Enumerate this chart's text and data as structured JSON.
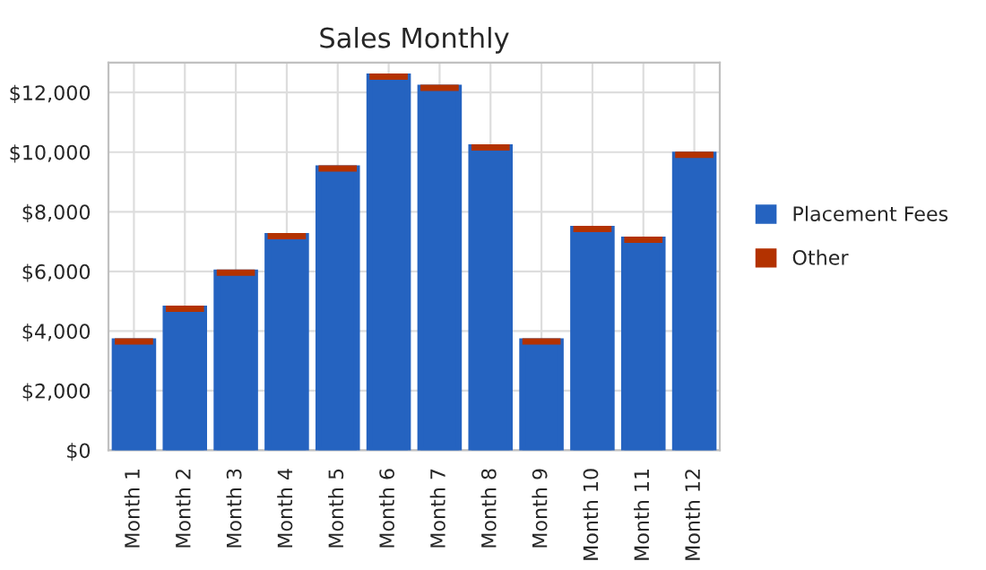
{
  "chart_data": {
    "type": "bar",
    "title": "Sales Monthly",
    "stacked": true,
    "categories": [
      "Month 1",
      "Month 2",
      "Month 3",
      "Month 4",
      "Month 5",
      "Month 6",
      "Month 7",
      "Month 8",
      "Month 9",
      "Month 10",
      "Month 11",
      "Month 12"
    ],
    "series": [
      {
        "name": "Placement Fees",
        "color": "#2563c0",
        "values": [
          3650,
          4750,
          5960,
          7180,
          9450,
          12530,
          12160,
          10160,
          3650,
          7420,
          7060,
          9910
        ]
      },
      {
        "name": "Other",
        "color": "#b33200",
        "values": [
          0,
          0,
          0,
          0,
          0,
          0,
          0,
          0,
          0,
          0,
          0,
          0
        ]
      }
    ],
    "ylim": [
      0,
      13000
    ],
    "yticks": [
      {
        "value": 0,
        "label": "$0"
      },
      {
        "value": 2000,
        "label": "$2,000"
      },
      {
        "value": 4000,
        "label": "$4,000"
      },
      {
        "value": 6000,
        "label": "$6,000"
      },
      {
        "value": 8000,
        "label": "$8,000"
      },
      {
        "value": 10000,
        "label": "$10,000"
      },
      {
        "value": 12000,
        "label": "$12,000"
      }
    ],
    "grid": true,
    "legend": "right"
  }
}
